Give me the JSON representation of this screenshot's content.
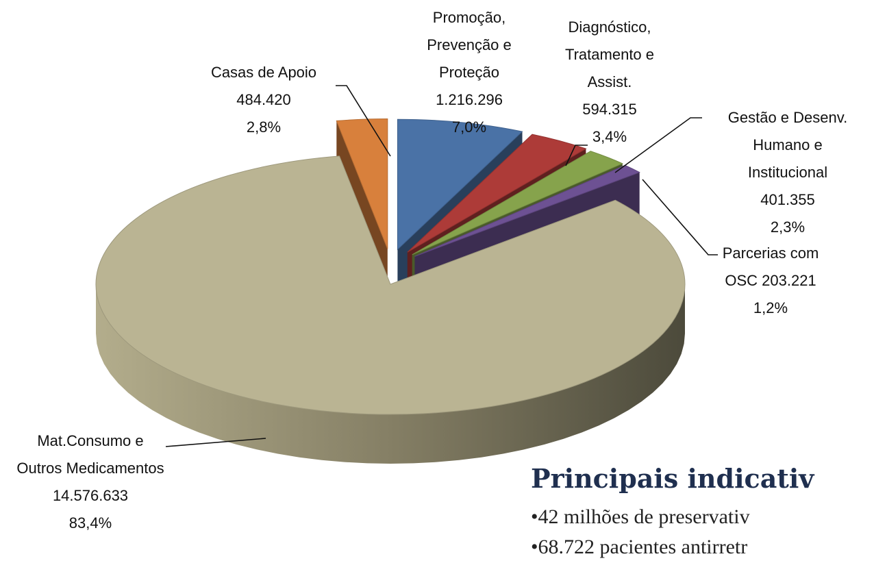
{
  "chart_data": {
    "type": "pie",
    "categories": [
      "Promoção, Prevenção e Proteção",
      "Diagnóstico, Tratamento e Assist.",
      "Gestão e Desenv. Humano e Institucional",
      "Parcerias com OSC",
      "Mat.Consumo e Outros Medicamentos",
      "Casas de Apoio"
    ],
    "values": [
      1216296,
      594315,
      401355,
      203221,
      14576633,
      484420
    ],
    "value_labels": [
      "1.216.296",
      "594.315",
      "401.355",
      "203.221",
      "14.576.633",
      "484.420"
    ],
    "percents": [
      7.0,
      3.4,
      2.3,
      1.2,
      83.4,
      2.8
    ],
    "percent_labels": [
      "7,0%",
      "3,4%",
      "2,3%",
      "1,2%",
      "83,4%",
      "2,8%"
    ],
    "colors": [
      "#4a72a6",
      "#ad3b38",
      "#86a34c",
      "#6d5193",
      "#bab493",
      "#d8803c"
    ]
  },
  "text_block": {
    "heading": "Principais indicativ",
    "bullets": [
      "42 milhões de preservativ",
      "68.722 pacientes antirretr"
    ]
  }
}
